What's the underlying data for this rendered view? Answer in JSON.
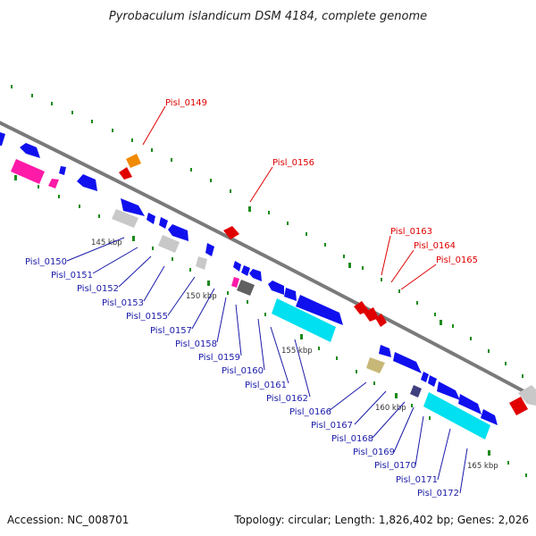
{
  "title": "Pyrobaculum islandicum DSM 4184, complete genome",
  "footer": {
    "accession": "Accession: NC_008701",
    "summary": "Topology: circular; Length: 1,826,402 bp; Genes: 2,026"
  },
  "scale_ticks": [
    "145 kbp",
    "150 kbp",
    "155 kbp",
    "160 kbp",
    "165 kbp"
  ],
  "labels_top": [
    "Pisl_0149",
    "Pisl_0156",
    "Pisl_0163",
    "Pisl_0164",
    "Pisl_0165"
  ],
  "labels_bottom": [
    "Pisl_0150",
    "Pisl_0151",
    "Pisl_0152",
    "Pisl_0153",
    "Pisl_0155",
    "Pisl_0157",
    "Pisl_0158",
    "Pisl_0159",
    "Pisl_0160",
    "Pisl_0161",
    "Pisl_0162",
    "Pisl_0166",
    "Pisl_0167",
    "Pisl_0168",
    "Pisl_0169",
    "Pisl_0170",
    "Pisl_0171",
    "Pisl_0172"
  ],
  "colors": {
    "backbone": "#7a7a7a",
    "forward_strand": "#e00000",
    "reverse_strand": "#1a1aa8",
    "gene_blue": "#1010ee",
    "gene_cyan": "#00e0f0",
    "gene_magenta": "#ff1aa8",
    "gene_grey": "#c8c8c8",
    "gene_orange": "#f08a00",
    "gene_tan": "#c8b878",
    "gene_slate": "#404080",
    "gc_dots": "#1a8a1a"
  }
}
